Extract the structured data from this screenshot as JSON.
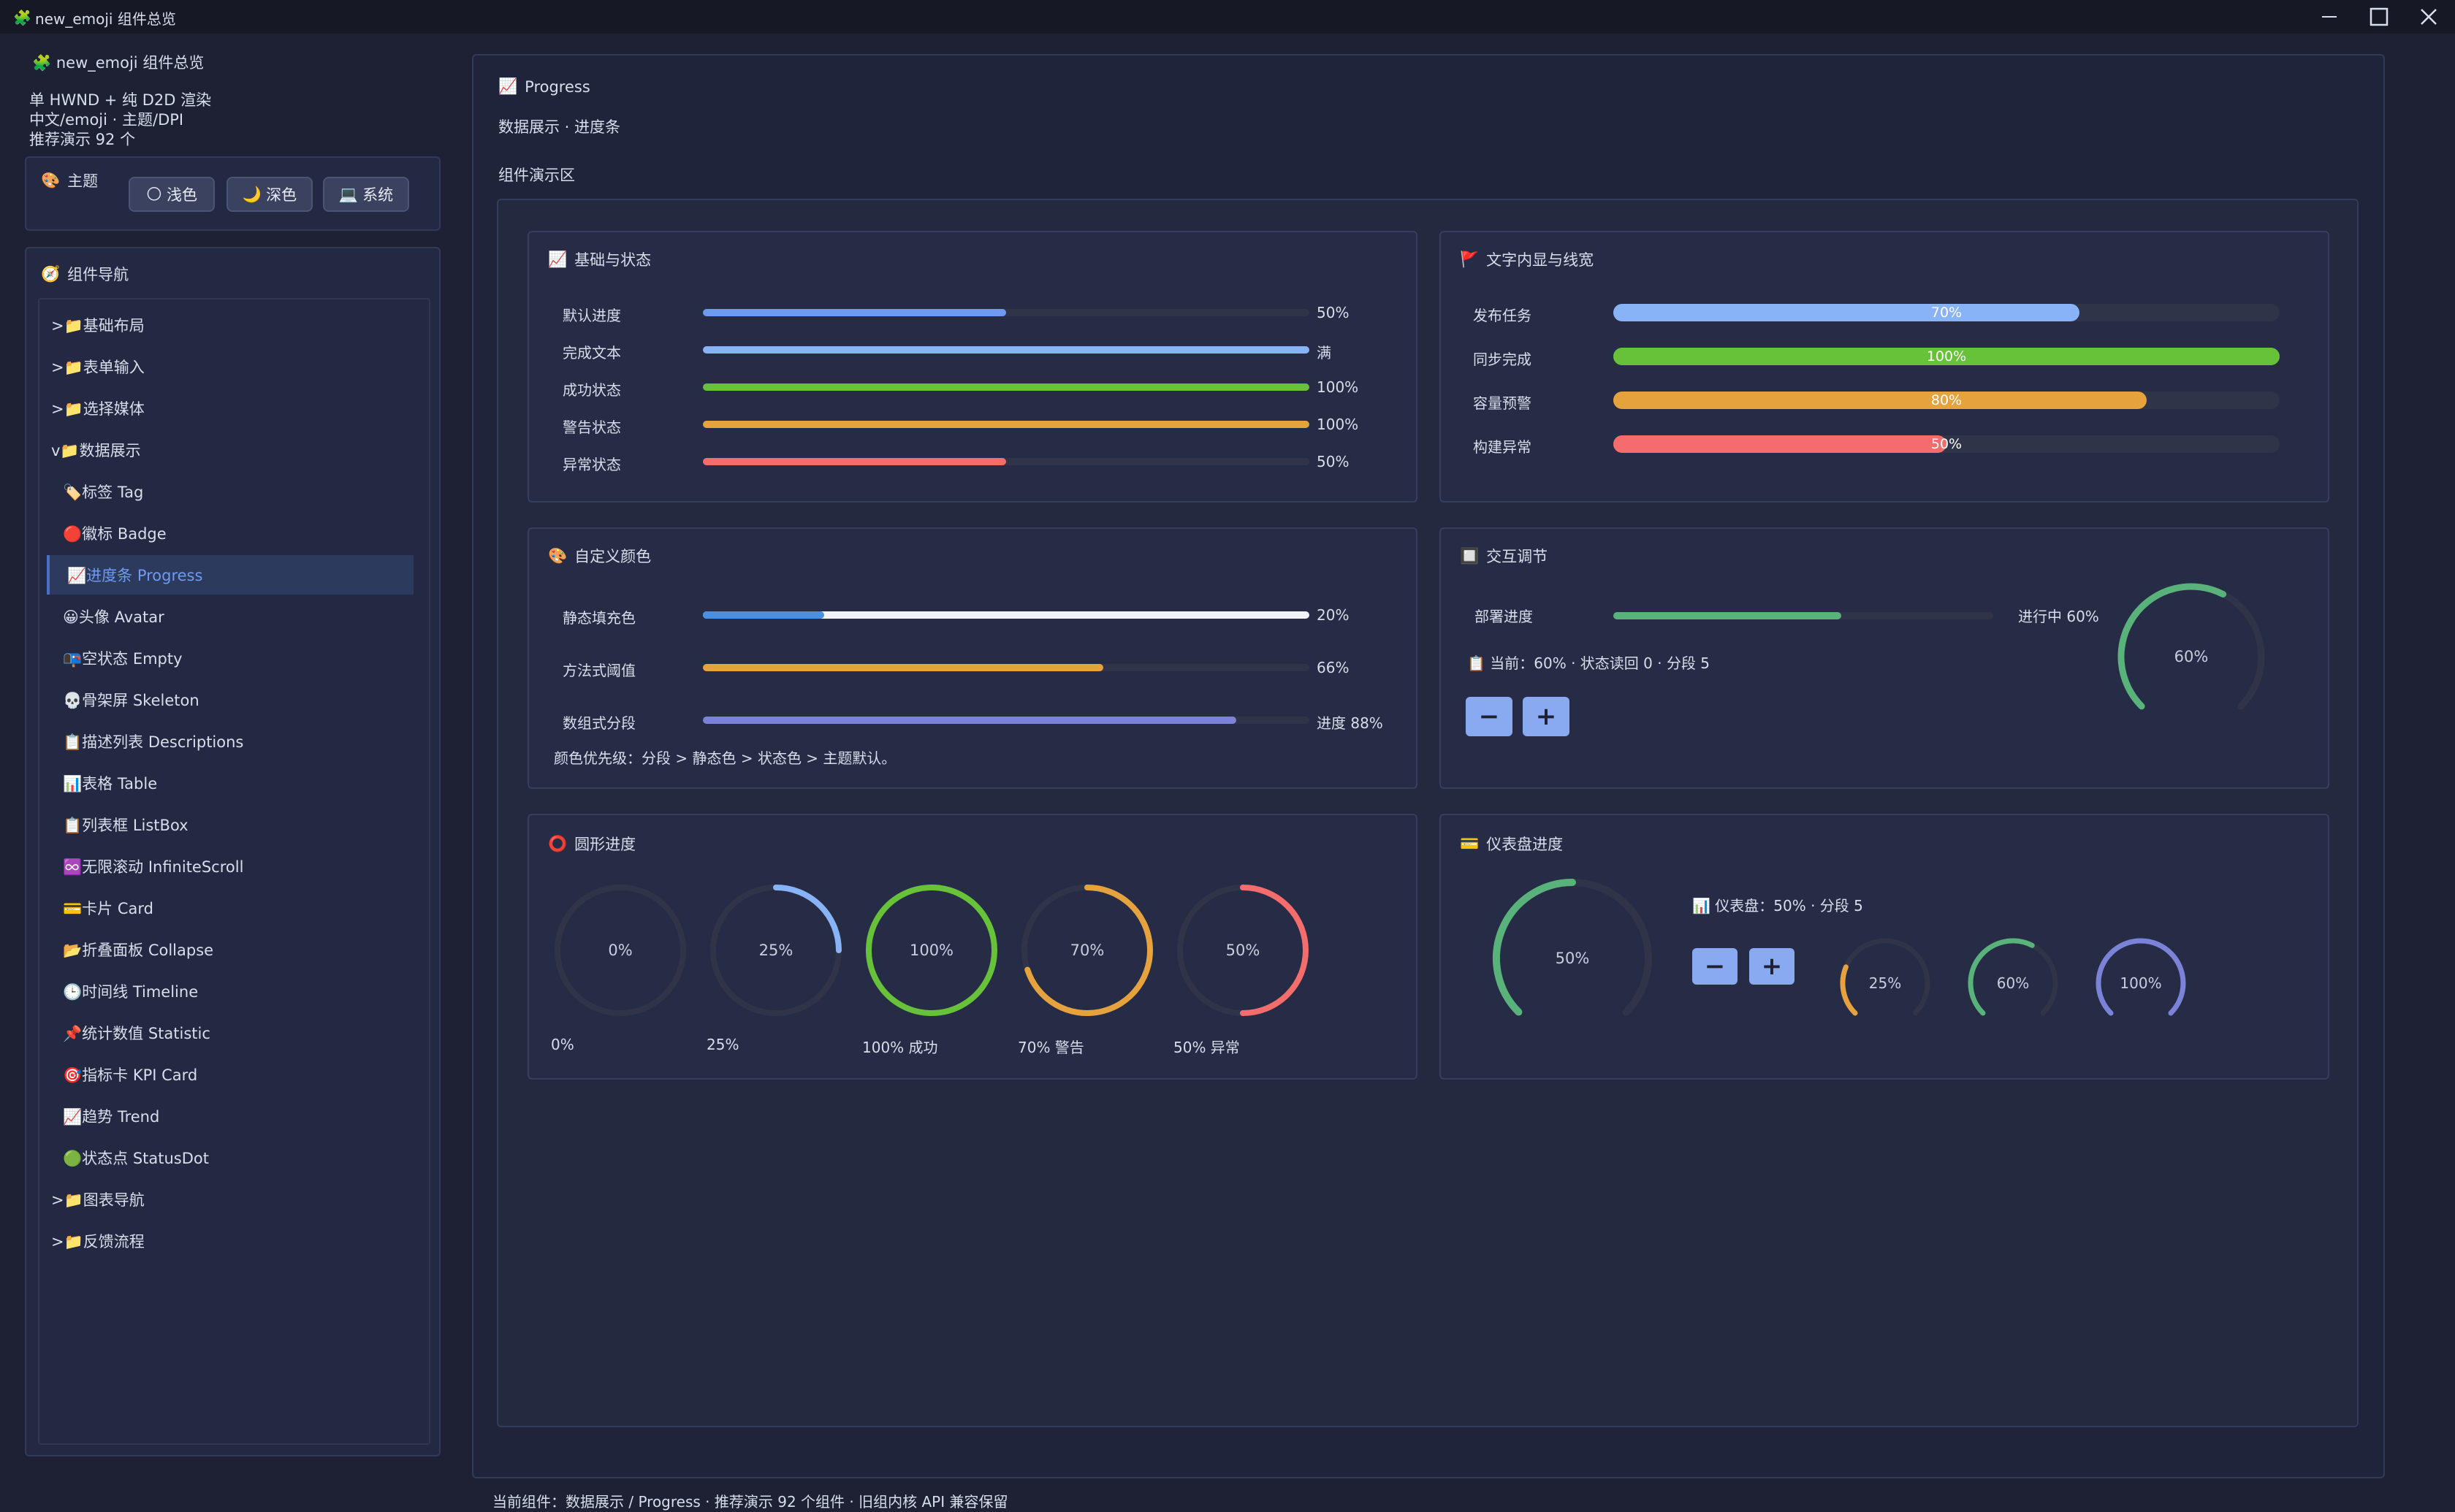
{
  "window": {
    "title": "new_emoji 组件总览"
  },
  "sidebar": {
    "app_title": "new_emoji 组件总览",
    "info_lines": [
      "单 HWND + 纯 D2D 渲染",
      "中文/emoji · 主题/DPI",
      "推荐演示 92 个"
    ],
    "theme": {
      "label": "主题",
      "buttons": [
        "浅色",
        "深色",
        "系统"
      ]
    },
    "nav": {
      "title": "组件导航",
      "groups": [
        {
          "label": ">📁基础布局"
        },
        {
          "label": ">📁表单输入"
        },
        {
          "label": ">📁选择媒体"
        },
        {
          "label": "v📁数据展示"
        },
        {
          "label": "🏷️标签 Tag"
        },
        {
          "label": "🔴徽标 Badge"
        },
        {
          "label": "📈进度条 Progress"
        },
        {
          "label": "😀头像 Avatar"
        },
        {
          "label": "📭空状态 Empty"
        },
        {
          "label": "💀骨架屏 Skeleton"
        },
        {
          "label": "📋描述列表 Descriptions"
        },
        {
          "label": "📊表格 Table"
        },
        {
          "label": "📋列表框 ListBox"
        },
        {
          "label": "♾️无限滚动 InfiniteScroll"
        },
        {
          "label": "💳卡片 Card"
        },
        {
          "label": "📂折叠面板 Collapse"
        },
        {
          "label": "🕒时间线 Timeline"
        },
        {
          "label": "📌统计数值 Statistic"
        },
        {
          "label": "🎯指标卡 KPI Card"
        },
        {
          "label": "📈趋势 Trend"
        },
        {
          "label": "🟢状态点 StatusDot"
        },
        {
          "label": ">📁图表导航"
        },
        {
          "label": ">📁反馈流程"
        }
      ]
    }
  },
  "main": {
    "title": "Progress",
    "subtitle": "数据展示 · 进度条",
    "demo_area": "组件演示区",
    "status_bar": "当前组件：数据展示 / Progress · 推荐演示 92 个组件 · 旧组内核 API 兼容保留"
  },
  "cards": {
    "basic": {
      "title": "基础与状态",
      "rows": [
        {
          "label": "默认进度",
          "value": 50,
          "text": "50%",
          "color": "#6e9bf1"
        },
        {
          "label": "完成文本",
          "value": 100,
          "text": "满",
          "color": "#89b3f7"
        },
        {
          "label": "成功状态",
          "value": 100,
          "text": "100%",
          "color": "#67c23a"
        },
        {
          "label": "警告状态",
          "value": 100,
          "text": "100%",
          "color": "#e6a23c"
        },
        {
          "label": "异常状态",
          "value": 50,
          "text": "50%",
          "color": "#f56c6c"
        }
      ]
    },
    "inner": {
      "title": "文字内显与线宽",
      "rows": [
        {
          "label": "发布任务",
          "value": 70,
          "text": "70%",
          "color": "#89b3f7"
        },
        {
          "label": "同步完成",
          "value": 100,
          "text": "100%",
          "color": "#67c23a"
        },
        {
          "label": "容量预警",
          "value": 80,
          "text": "80%",
          "color": "#e6a23c"
        },
        {
          "label": "构建异常",
          "value": 50,
          "text": "50%",
          "color": "#f56c6c"
        }
      ]
    },
    "custom": {
      "title": "自定义颜色",
      "rows": [
        {
          "label": "静态填充色",
          "value": 20,
          "text": "20%",
          "color": "#4a90e2",
          "track": "#f1f3f8"
        },
        {
          "label": "方法式阈值",
          "value": 66,
          "text": "66%",
          "color": "#e6a23c",
          "track": "#2f3449"
        },
        {
          "label": "数组式分段",
          "value": 88,
          "text": "进度 88%",
          "color": "#7b83d9",
          "track": "#2f3449"
        }
      ],
      "note": "颜色优先级：分段 > 静态色 > 状态色 > 主题默认。"
    },
    "interactive": {
      "title": "交互调节",
      "label": "部署进度",
      "value": 60,
      "status": "进行中 60%",
      "info": "当前：60% · 状态读回 0 · 分段 5",
      "ring_text": "60%",
      "color": "#58b27a"
    },
    "circle": {
      "title": "圆形进度",
      "items": [
        {
          "value": 0,
          "center": "0%",
          "caption": "0%",
          "color": "#6e9bf1"
        },
        {
          "value": 25,
          "center": "25%",
          "caption": "25%",
          "color": "#89b3f7"
        },
        {
          "value": 100,
          "center": "100%",
          "caption": "100% 成功",
          "color": "#67c23a"
        },
        {
          "value": 70,
          "center": "70%",
          "caption": "70% 警告",
          "color": "#e6a23c"
        },
        {
          "value": 50,
          "center": "50%",
          "caption": "50% 异常",
          "color": "#f56c6c"
        }
      ]
    },
    "dashboard": {
      "title": "仪表盘进度",
      "main": {
        "value": 50,
        "text": "50%",
        "color": "#58b27a"
      },
      "info": "仪表盘：50% · 分段 5",
      "small": [
        {
          "value": 25,
          "text": "25%",
          "color": "#e6a23c"
        },
        {
          "value": 60,
          "text": "60%",
          "color": "#58b27a"
        },
        {
          "value": 100,
          "text": "100%",
          "color": "#7b83d9"
        }
      ]
    }
  },
  "icons": {
    "app": "puzzle-icon",
    "theme": "palette-icon",
    "nav": "compass-icon"
  }
}
